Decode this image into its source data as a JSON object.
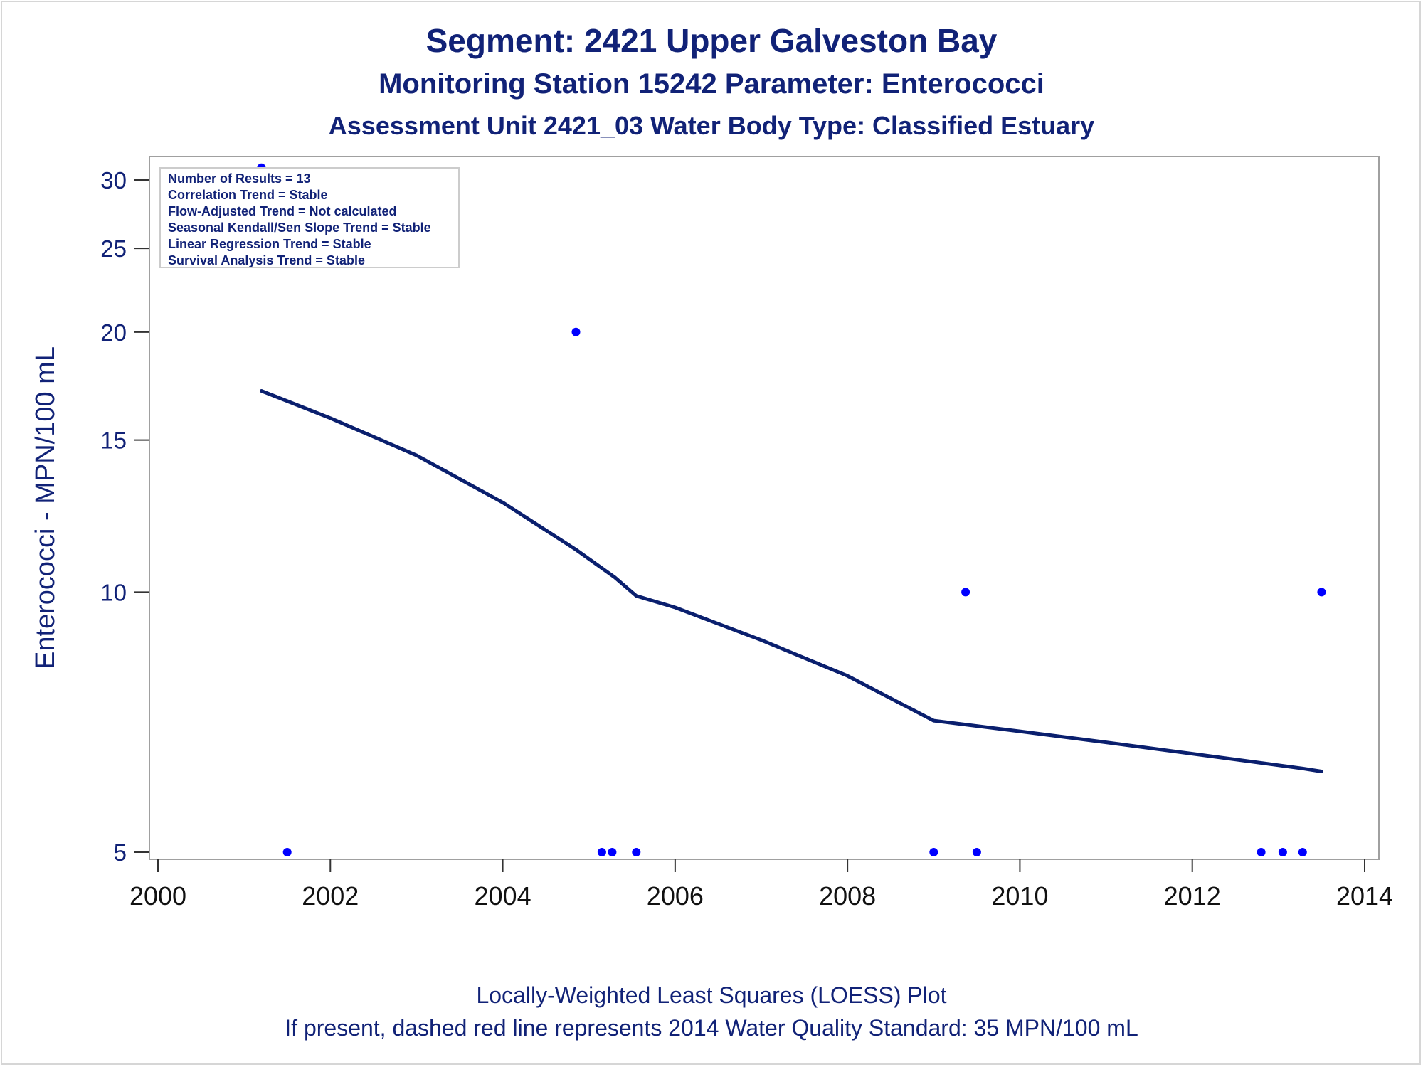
{
  "titles": {
    "line1": "Segment: 2421  Upper Galveston Bay",
    "line2": "Monitoring Station 15242 Parameter: Enterococci",
    "line3": "Assessment Unit 2421_03   Water Body Type: Classified Estuary"
  },
  "inset": {
    "lines": [
      "Number of Results = 13",
      "Correlation Trend = Stable",
      "Flow-Adjusted Trend = Not calculated",
      "Seasonal Kendall/Sen Slope Trend = Stable",
      "Linear Regression Trend = Stable",
      "Survival Analysis Trend = Stable"
    ]
  },
  "footnotes": {
    "line1": "Locally-Weighted Least Squares (LOESS) Plot",
    "line2": "If present, dashed red line represents 2014 Water Quality Standard: 35 MPN/100 mL"
  },
  "chart_data": {
    "type": "scatter",
    "ylabel": "Enterococci - MPN/100 mL",
    "xlabel": "",
    "xlim": [
      2000,
      2014
    ],
    "ylim": [
      5,
      31
    ],
    "y_scale": "log",
    "x_ticks": [
      2000,
      2002,
      2004,
      2006,
      2008,
      2010,
      2012,
      2014
    ],
    "y_ticks": [
      5,
      10,
      15,
      20,
      25,
      30
    ],
    "grid": false,
    "colors": {
      "points": "#0000ff",
      "loess": "#0a1f6e",
      "text": "#112277"
    },
    "points": [
      {
        "x": 2001.2,
        "y": 31
      },
      {
        "x": 2001.5,
        "y": 5
      },
      {
        "x": 2004.85,
        "y": 20
      },
      {
        "x": 2005.15,
        "y": 5
      },
      {
        "x": 2005.27,
        "y": 5
      },
      {
        "x": 2005.55,
        "y": 5
      },
      {
        "x": 2009.0,
        "y": 5
      },
      {
        "x": 2009.37,
        "y": 10
      },
      {
        "x": 2009.5,
        "y": 5
      },
      {
        "x": 2012.8,
        "y": 5
      },
      {
        "x": 2013.05,
        "y": 5
      },
      {
        "x": 2013.28,
        "y": 5
      },
      {
        "x": 2013.5,
        "y": 10
      }
    ],
    "loess": [
      {
        "x": 2001.2,
        "y": 17.1
      },
      {
        "x": 2002.0,
        "y": 15.9
      },
      {
        "x": 2003.0,
        "y": 14.4
      },
      {
        "x": 2004.0,
        "y": 12.7
      },
      {
        "x": 2004.85,
        "y": 11.2
      },
      {
        "x": 2005.3,
        "y": 10.4
      },
      {
        "x": 2005.55,
        "y": 9.9
      },
      {
        "x": 2006.0,
        "y": 9.6
      },
      {
        "x": 2007.0,
        "y": 8.8
      },
      {
        "x": 2008.0,
        "y": 8.0
      },
      {
        "x": 2009.0,
        "y": 7.1
      },
      {
        "x": 2010.0,
        "y": 6.9
      },
      {
        "x": 2011.0,
        "y": 6.7
      },
      {
        "x": 2012.0,
        "y": 6.5
      },
      {
        "x": 2013.28,
        "y": 6.25
      },
      {
        "x": 2013.5,
        "y": 6.2
      }
    ]
  }
}
